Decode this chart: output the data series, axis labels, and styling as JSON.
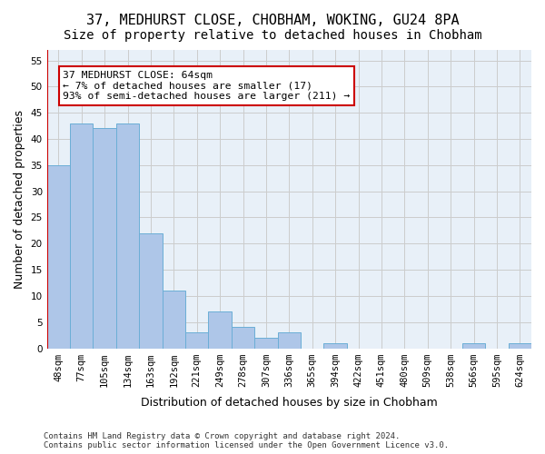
{
  "title1": "37, MEDHURST CLOSE, CHOBHAM, WOKING, GU24 8PA",
  "title2": "Size of property relative to detached houses in Chobham",
  "xlabel": "Distribution of detached houses by size in Chobham",
  "ylabel": "Number of detached properties",
  "categories": [
    "48sqm",
    "77sqm",
    "105sqm",
    "134sqm",
    "163sqm",
    "192sqm",
    "221sqm",
    "249sqm",
    "278sqm",
    "307sqm",
    "336sqm",
    "365sqm",
    "394sqm",
    "422sqm",
    "451sqm",
    "480sqm",
    "509sqm",
    "538sqm",
    "566sqm",
    "595sqm",
    "624sqm"
  ],
  "values": [
    35,
    43,
    42,
    43,
    22,
    11,
    3,
    7,
    4,
    2,
    3,
    0,
    1,
    0,
    0,
    0,
    0,
    0,
    1,
    0,
    1
  ],
  "bar_color": "#aec6e8",
  "bar_edge_color": "#6baed6",
  "property_line_x": 0,
  "annotation_text": "37 MEDHURST CLOSE: 64sqm\n← 7% of detached houses are smaller (17)\n93% of semi-detached houses are larger (211) →",
  "annotation_box_color": "#ffffff",
  "annotation_box_edge_color": "#cc0000",
  "ylim": [
    0,
    57
  ],
  "yticks": [
    0,
    5,
    10,
    15,
    20,
    25,
    30,
    35,
    40,
    45,
    50,
    55
  ],
  "grid_color": "#cccccc",
  "background_color": "#e8f0f8",
  "footer_text": "Contains HM Land Registry data © Crown copyright and database right 2024.\nContains public sector information licensed under the Open Government Licence v3.0.",
  "title_fontsize": 11,
  "subtitle_fontsize": 10,
  "tick_fontsize": 7.5,
  "ylabel_fontsize": 9,
  "xlabel_fontsize": 9
}
